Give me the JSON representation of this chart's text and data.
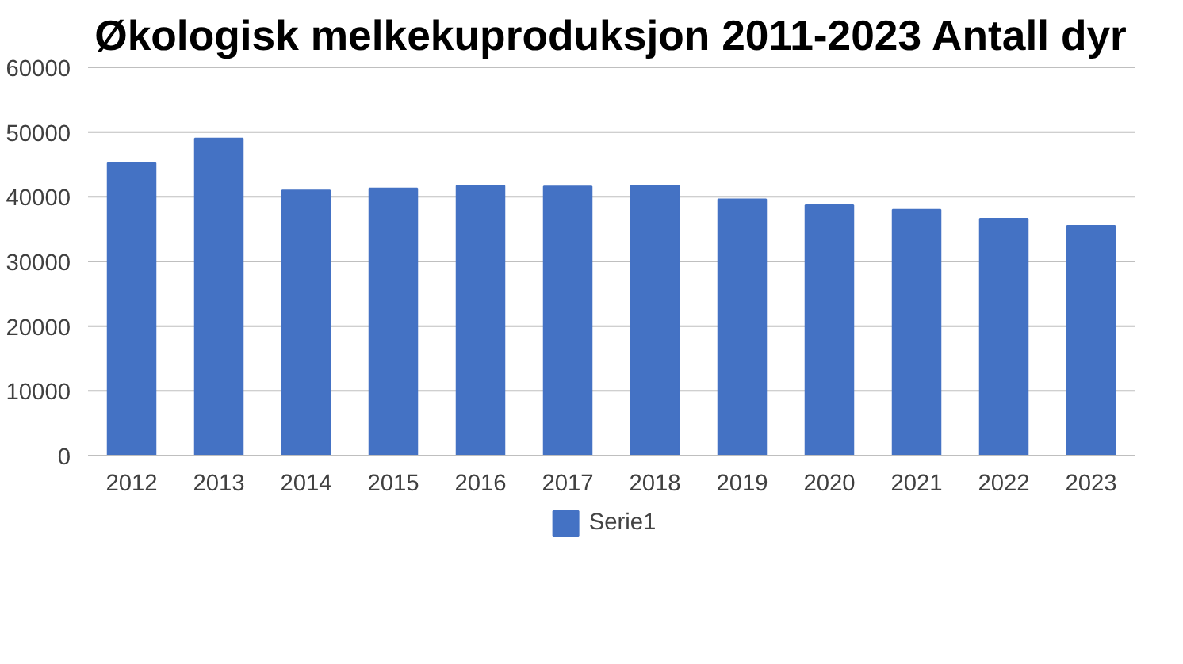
{
  "chart_data": {
    "type": "bar",
    "title": "Økologisk melkekuproduksjon 2011-2023 Antall dyr",
    "categories": [
      "2012",
      "2013",
      "2014",
      "2015",
      "2016",
      "2017",
      "2018",
      "2019",
      "2020",
      "2021",
      "2022",
      "2023"
    ],
    "series": [
      {
        "name": "Serie1",
        "color": "#4472c4",
        "values": [
          45200,
          49000,
          41000,
          41300,
          41700,
          41600,
          41700,
          39600,
          38700,
          38000,
          36600,
          35500
        ]
      }
    ],
    "ylim": [
      0,
      60000
    ],
    "yticks": [
      0,
      10000,
      20000,
      30000,
      40000,
      50000,
      60000
    ],
    "grid": "y",
    "legend": "bottom"
  }
}
